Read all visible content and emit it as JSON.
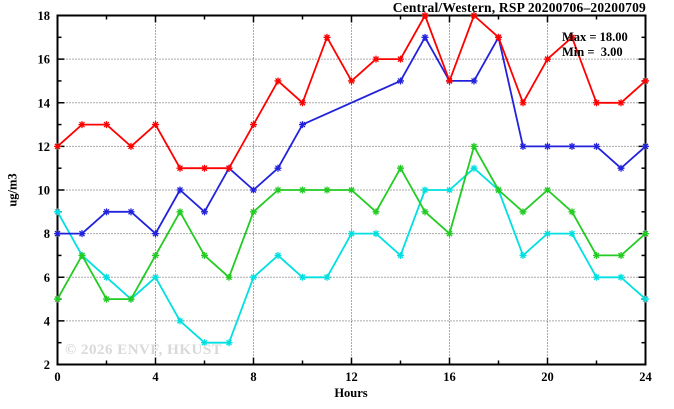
{
  "title": "Central/Western, RSP 20200706–20200709",
  "annotation": {
    "max_line": "Max = 18.00",
    "min_line": "Min =  3.00"
  },
  "watermark": "© 2026 ENVF, HKUST",
  "axes": {
    "xlabel": "Hours",
    "ylabel": "ug/m3"
  },
  "chart_data": {
    "type": "line",
    "title": "Central/Western, RSP 20200706–20200709",
    "xlabel": "Hours",
    "ylabel": "ug/m3",
    "xlim": [
      0,
      24
    ],
    "ylim": [
      2,
      18
    ],
    "x_major_ticks": [
      0,
      4,
      8,
      12,
      16,
      20,
      24
    ],
    "x_minor_ticks": [
      2,
      6,
      10,
      14,
      18,
      22
    ],
    "x_gridlines": [
      4,
      8,
      12,
      16,
      20
    ],
    "y_major_ticks": [
      2,
      4,
      6,
      8,
      10,
      12,
      14,
      16,
      18
    ],
    "y_minor_ticks": [
      3,
      5,
      7,
      9,
      11,
      13,
      15,
      17
    ],
    "y_gridlines": [
      4,
      6,
      8,
      10,
      12,
      14,
      16
    ],
    "x": [
      0,
      1,
      2,
      3,
      4,
      5,
      6,
      7,
      8,
      9,
      10,
      11,
      12,
      13,
      14,
      15,
      16,
      17,
      18,
      19,
      20,
      21,
      22,
      23,
      24
    ],
    "series": [
      {
        "name": "red",
        "color": "#ff0000",
        "values": [
          12,
          13,
          13,
          12,
          13,
          11,
          11,
          11,
          13,
          15,
          14,
          17,
          15,
          16,
          16,
          18,
          15,
          18,
          17,
          14,
          16,
          17,
          14,
          14,
          15
        ]
      },
      {
        "name": "blue",
        "color": "#2222dd",
        "values": [
          8,
          8,
          9,
          9,
          8,
          10,
          9,
          11,
          10,
          11,
          13,
          null,
          null,
          null,
          15,
          17,
          15,
          15,
          17,
          12,
          12,
          12,
          12,
          11,
          12
        ]
      },
      {
        "name": "green",
        "color": "#22cc22",
        "values": [
          5,
          7,
          5,
          5,
          7,
          9,
          7,
          6,
          9,
          10,
          10,
          10,
          10,
          9,
          11,
          9,
          8,
          12,
          10,
          9,
          10,
          9,
          7,
          7,
          8
        ]
      },
      {
        "name": "cyan",
        "color": "#00e0e0",
        "values": [
          9,
          7,
          6,
          5,
          6,
          4,
          3,
          3,
          6,
          7,
          6,
          6,
          8,
          8,
          7,
          10,
          10,
          11,
          10,
          7,
          8,
          8,
          6,
          6,
          5
        ]
      }
    ],
    "annotations": [
      "Max = 18.00",
      "Min =  3.00"
    ],
    "legend": "none",
    "grid": true
  }
}
